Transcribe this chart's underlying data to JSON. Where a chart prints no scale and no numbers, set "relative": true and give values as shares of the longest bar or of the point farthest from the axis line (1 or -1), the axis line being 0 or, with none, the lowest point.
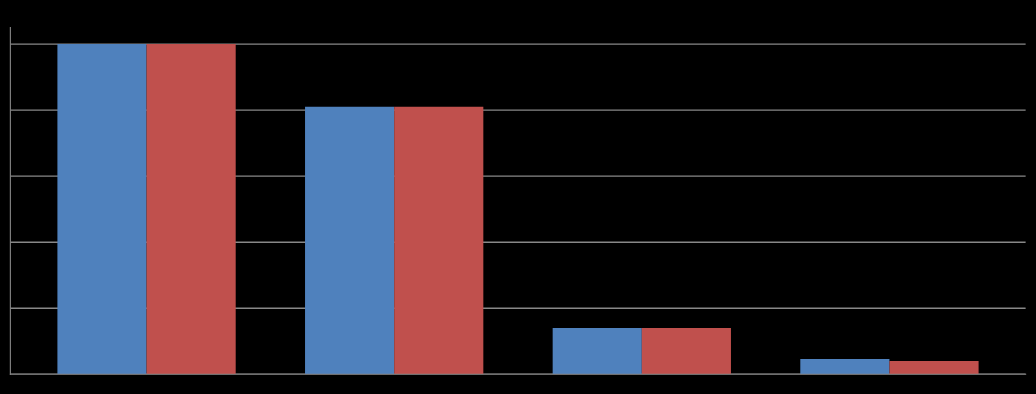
{
  "chart_data": {
    "type": "bar",
    "relative": true,
    "categories": [
      null,
      null,
      null,
      null
    ],
    "series": [
      {
        "color": "#4f81bd",
        "values": [
          1,
          0.81,
          0.14,
          0.046
        ]
      },
      {
        "color": "#c0504d",
        "values": [
          1,
          0.81,
          0.14,
          0.04
        ]
      }
    ],
    "grid": "y"
  }
}
